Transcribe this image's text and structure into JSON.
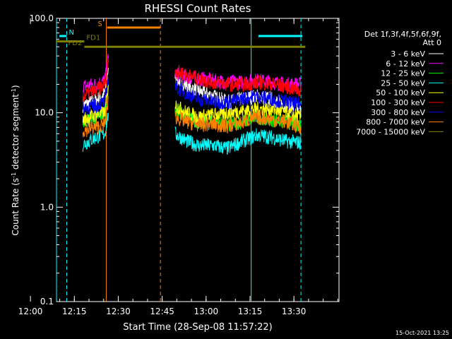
{
  "chart_data": {
    "type": "line",
    "title": "RHESSI Count Rates",
    "xlabel": "Start Time (28-Sep-08 11:57:22)",
    "ylabel_main": "Count Rate (s",
    "ylabel_sup1": "-1",
    "ylabel_mid": " detector segment",
    "ylabel_sup2": "-1",
    "ylabel_end": ")",
    "y_scale": "log",
    "ylim": [
      0.1,
      100.0
    ],
    "xlim_minutes": [
      11.5,
      108.0
    ],
    "x_ticks": [
      {
        "label": "12:00",
        "minute": 2.6
      },
      {
        "label": "12:15",
        "minute": 17.6
      },
      {
        "label": "12:30",
        "minute": 32.6
      },
      {
        "label": "12:45",
        "minute": 47.6
      },
      {
        "label": "13:00",
        "minute": 62.6
      },
      {
        "label": "13:15",
        "minute": 77.6
      },
      {
        "label": "13:30",
        "minute": 92.6
      }
    ],
    "y_ticks": [
      {
        "label": "100.0",
        "value": 100
      },
      {
        "label": "10.0",
        "value": 10
      },
      {
        "label": "1.0",
        "value": 1
      },
      {
        "label": "0.1",
        "value": 0.1
      }
    ],
    "legend_header": [
      "Det 1f,3f,4f,5f,6f,9f,",
      "Att 0"
    ],
    "series": [
      {
        "name": "3 - 6 keV",
        "color": "#ffffff",
        "segments": [
          [
            [
              20.5,
              12
            ],
            [
              25,
              13.5
            ],
            [
              28,
              16
            ],
            [
              29.2,
              30
            ]
          ],
          [
            [
              52,
              24
            ],
            [
              56,
              19
            ],
            [
              60,
              17
            ],
            [
              65,
              15
            ],
            [
              70,
              13
            ],
            [
              75,
              14
            ],
            [
              80,
              15
            ],
            [
              85,
              14
            ],
            [
              90,
              12
            ],
            [
              95,
              11
            ]
          ]
        ]
      },
      {
        "name": "6 - 12 keV",
        "color": "#ff00ff",
        "segments": [
          [
            [
              20.5,
              19
            ],
            [
              25,
              20
            ],
            [
              28,
              22
            ],
            [
              29.2,
              38
            ]
          ],
          [
            [
              52,
              26
            ],
            [
              56,
              24
            ],
            [
              60,
              23
            ],
            [
              65,
              22
            ],
            [
              70,
              21
            ],
            [
              75,
              21
            ],
            [
              80,
              22
            ],
            [
              85,
              21
            ],
            [
              90,
              20
            ],
            [
              95,
              20
            ]
          ]
        ]
      },
      {
        "name": "12 - 25 keV",
        "color": "#00ff00",
        "segments": [
          [
            [
              20.5,
              8
            ],
            [
              25,
              9
            ],
            [
              28,
              10
            ],
            [
              29.2,
              18
            ]
          ],
          [
            [
              52,
              11
            ],
            [
              56,
              9
            ],
            [
              60,
              8
            ],
            [
              65,
              8
            ],
            [
              70,
              7.5
            ],
            [
              75,
              8
            ],
            [
              80,
              9
            ],
            [
              85,
              8.5
            ],
            [
              90,
              8
            ],
            [
              95,
              7.5
            ]
          ]
        ]
      },
      {
        "name": "25 - 50 keV",
        "color": "#00ffff",
        "segments": [
          [
            [
              20.5,
              4.6
            ],
            [
              25,
              5.5
            ],
            [
              28,
              6
            ],
            [
              29.2,
              10
            ]
          ],
          [
            [
              52,
              6
            ],
            [
              56,
              5
            ],
            [
              60,
              4.5
            ],
            [
              65,
              4.5
            ],
            [
              70,
              4.2
            ],
            [
              75,
              5
            ],
            [
              80,
              5.8
            ],
            [
              85,
              5.5
            ],
            [
              90,
              5
            ],
            [
              95,
              4.8
            ]
          ]
        ]
      },
      {
        "name": "50 - 100 keV",
        "color": "#ffff00",
        "segments": [
          [
            [
              20.5,
              8.5
            ],
            [
              25,
              9.5
            ],
            [
              28,
              10
            ],
            [
              29.2,
              20
            ]
          ],
          [
            [
              52,
              12
            ],
            [
              56,
              10
            ],
            [
              60,
              9
            ],
            [
              65,
              9.5
            ],
            [
              70,
              10
            ],
            [
              75,
              10.5
            ],
            [
              80,
              11
            ],
            [
              85,
              11
            ],
            [
              90,
              10
            ],
            [
              95,
              9
            ]
          ]
        ]
      },
      {
        "name": "100 - 300 keV",
        "color": "#ff0000",
        "segments": [
          [
            [
              20.5,
              15
            ],
            [
              25,
              17
            ],
            [
              28,
              20
            ],
            [
              29.2,
              34
            ]
          ],
          [
            [
              52,
              28
            ],
            [
              56,
              25
            ],
            [
              60,
              23
            ],
            [
              65,
              21
            ],
            [
              70,
              20
            ],
            [
              75,
              20
            ],
            [
              80,
              21
            ],
            [
              85,
              20
            ],
            [
              90,
              19
            ],
            [
              95,
              17
            ]
          ]
        ]
      },
      {
        "name": "300 - 800 keV",
        "color": "#0000ff",
        "segments": [
          [
            [
              20.5,
              11
            ],
            [
              25,
              12
            ],
            [
              28,
              13
            ],
            [
              29.2,
              24
            ]
          ],
          [
            [
              52,
              19
            ],
            [
              56,
              16
            ],
            [
              60,
              14
            ],
            [
              65,
              13
            ],
            [
              70,
              13
            ],
            [
              75,
              14
            ],
            [
              80,
              15
            ],
            [
              85,
              14
            ],
            [
              90,
              13
            ],
            [
              95,
              12
            ]
          ]
        ]
      },
      {
        "name": "800 - 7000 keV",
        "color": "#ff8000",
        "segments": [
          [
            [
              20.5,
              6.5
            ],
            [
              25,
              7
            ],
            [
              28,
              7.5
            ],
            [
              29.2,
              14
            ]
          ],
          [
            [
              52,
              9
            ],
            [
              56,
              8
            ],
            [
              60,
              7.5
            ],
            [
              65,
              7.5
            ],
            [
              70,
              7.2
            ],
            [
              75,
              8
            ],
            [
              80,
              9
            ],
            [
              85,
              8.5
            ],
            [
              90,
              8
            ],
            [
              95,
              7
            ]
          ]
        ]
      },
      {
        "name": "7000 - 15000 keV",
        "color": "#808000",
        "segments": []
      }
    ],
    "vertical_markers": [
      {
        "minute": 11.5,
        "color": "#00ffff",
        "style": "solid"
      },
      {
        "minute": 15.0,
        "color": "#00ffff",
        "style": "dashed"
      },
      {
        "minute": 28.5,
        "color": "#ff8000",
        "style": "solid"
      },
      {
        "minute": 47.0,
        "color": "#ff8000",
        "style": "dashed"
      },
      {
        "minute": 78.0,
        "color": "#00ffff",
        "style": "solid"
      },
      {
        "minute": 95.0,
        "color": "#00ffff",
        "style": "dashed"
      }
    ],
    "flag_bars": [
      {
        "label": "N",
        "color": "#00ffff",
        "segments": [
          [
            12.5,
            15.0
          ],
          [
            80.5,
            95.5
          ]
        ],
        "value": 65
      },
      {
        "label": "S",
        "color": "#ff8000",
        "segments": [
          [
            28.8,
            47.0
          ]
        ],
        "value": 80
      },
      {
        "label": "FD1",
        "color": "#808000",
        "segments": [
          [
            11.5,
            21.0
          ]
        ],
        "value": 57
      },
      {
        "label": "FD2",
        "color": "#808000",
        "segments": [
          [
            21.0,
            96.5
          ]
        ],
        "value": 50
      }
    ],
    "grid": false,
    "legend_position": "right"
  },
  "footer_date": "15-Oct-2021 13:25"
}
